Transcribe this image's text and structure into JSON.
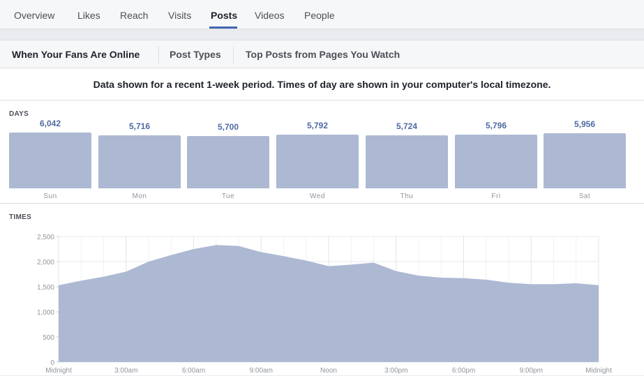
{
  "topnav": {
    "tabs": [
      {
        "label": "Overview"
      },
      {
        "label": "Likes"
      },
      {
        "label": "Reach"
      },
      {
        "label": "Visits"
      },
      {
        "label": "Posts",
        "active": true
      },
      {
        "label": "Videos"
      },
      {
        "label": "People"
      }
    ]
  },
  "subtabs": {
    "items": [
      {
        "label": "When Your Fans Are Online",
        "active": true
      },
      {
        "label": "Post Types"
      },
      {
        "label": "Top Posts from Pages You Watch"
      }
    ]
  },
  "notice": "Data shown for a recent 1-week period. Times of day are shown in your computer's local timezone.",
  "days_section": {
    "label": "DAYS",
    "bars": [
      {
        "day": "Sun",
        "value": 6042,
        "value_text": "6,042"
      },
      {
        "day": "Mon",
        "value": 5716,
        "value_text": "5,716"
      },
      {
        "day": "Tue",
        "value": 5700,
        "value_text": "5,700"
      },
      {
        "day": "Wed",
        "value": 5792,
        "value_text": "5,792"
      },
      {
        "day": "Thu",
        "value": 5724,
        "value_text": "5,724"
      },
      {
        "day": "Fri",
        "value": 5796,
        "value_text": "5,796"
      },
      {
        "day": "Sat",
        "value": 5956,
        "value_text": "5,956"
      }
    ]
  },
  "times_section": {
    "label": "TIMES"
  },
  "colors": {
    "bar_fill": "#adb9d3",
    "area_fill": "#adb9d3",
    "value_text": "#4e6aa3",
    "accent": "#4267b2"
  },
  "chart_data": [
    {
      "type": "bar",
      "categories": [
        "Sun",
        "Mon",
        "Tue",
        "Wed",
        "Thu",
        "Fri",
        "Sat"
      ],
      "values": [
        6042,
        5716,
        5700,
        5792,
        5724,
        5796,
        5956
      ],
      "title": "DAYS"
    },
    {
      "type": "area",
      "title": "TIMES",
      "x": [
        0,
        1,
        2,
        3,
        4,
        5,
        6,
        7,
        8,
        9,
        10,
        11,
        12,
        13,
        14,
        15,
        16,
        17,
        18,
        19,
        20,
        21,
        22,
        23,
        24
      ],
      "values": [
        1530,
        1620,
        1700,
        1800,
        2000,
        2130,
        2250,
        2330,
        2310,
        2190,
        2110,
        2020,
        1910,
        1940,
        1980,
        1810,
        1720,
        1680,
        1670,
        1640,
        1580,
        1550,
        1550,
        1570,
        1530
      ],
      "ylim": [
        0,
        2500
      ],
      "yticks": [
        0,
        500,
        1000,
        1500,
        2000,
        2500
      ],
      "ytick_labels": [
        "0",
        "500",
        "1,000",
        "1,500",
        "2,000",
        "2,500"
      ],
      "xticks": [
        0,
        3,
        6,
        9,
        12,
        15,
        18,
        21,
        24
      ],
      "xtick_labels": [
        "Midnight",
        "3:00am",
        "6:00am",
        "9:00am",
        "Noon",
        "3:00pm",
        "6:00pm",
        "9:00pm",
        "Midnight"
      ],
      "grid": true
    }
  ]
}
